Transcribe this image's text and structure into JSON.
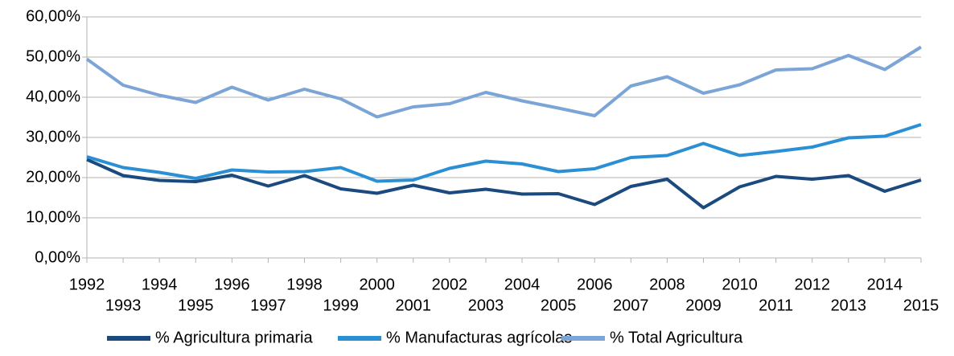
{
  "chart_data": {
    "type": "line",
    "categories": [
      "1992",
      "1993",
      "1994",
      "1995",
      "1996",
      "1997",
      "1998",
      "1999",
      "2000",
      "2001",
      "2002",
      "2003",
      "2004",
      "2005",
      "2006",
      "2007",
      "2008",
      "2009",
      "2010",
      "2011",
      "2012",
      "2013",
      "2014",
      "2015"
    ],
    "series": [
      {
        "name": "% Agricultura primaria",
        "color": "#1a4a7e",
        "values": [
          24.5,
          20.5,
          19.3,
          19.0,
          20.6,
          17.9,
          20.5,
          17.2,
          16.1,
          18.1,
          16.2,
          17.1,
          15.9,
          16.0,
          13.3,
          17.8,
          19.6,
          12.5,
          17.7,
          20.3,
          19.6,
          20.5,
          16.6,
          19.4
        ]
      },
      {
        "name": "% Manufacturas agrícolas",
        "color": "#2b8fd4",
        "values": [
          25.2,
          22.5,
          21.3,
          19.8,
          21.9,
          21.4,
          21.5,
          22.5,
          19.1,
          19.4,
          22.3,
          24.1,
          23.4,
          21.5,
          22.2,
          25.0,
          25.5,
          28.5,
          25.5,
          26.5,
          27.6,
          29.9,
          30.3,
          33.2
        ]
      },
      {
        "name": "% Total Agricultura",
        "color": "#7ba5d6",
        "values": [
          49.5,
          43.0,
          40.5,
          38.7,
          42.5,
          39.3,
          42.0,
          39.6,
          35.1,
          37.6,
          38.4,
          41.2,
          39.1,
          37.3,
          35.4,
          42.8,
          45.1,
          41.0,
          43.1,
          46.8,
          47.1,
          50.4,
          46.9,
          52.5
        ]
      }
    ],
    "ylim": [
      0,
      60
    ],
    "yticks": [
      {
        "value": 0,
        "label": "0,00%"
      },
      {
        "value": 10,
        "label": "10,00%"
      },
      {
        "value": 20,
        "label": "20,00%"
      },
      {
        "value": 30,
        "label": "30,00%"
      },
      {
        "value": 40,
        "label": "40,00%"
      },
      {
        "value": 50,
        "label": "50,00%"
      },
      {
        "value": 60,
        "label": "60,00%"
      }
    ],
    "grid": true,
    "legend": "bottom"
  }
}
